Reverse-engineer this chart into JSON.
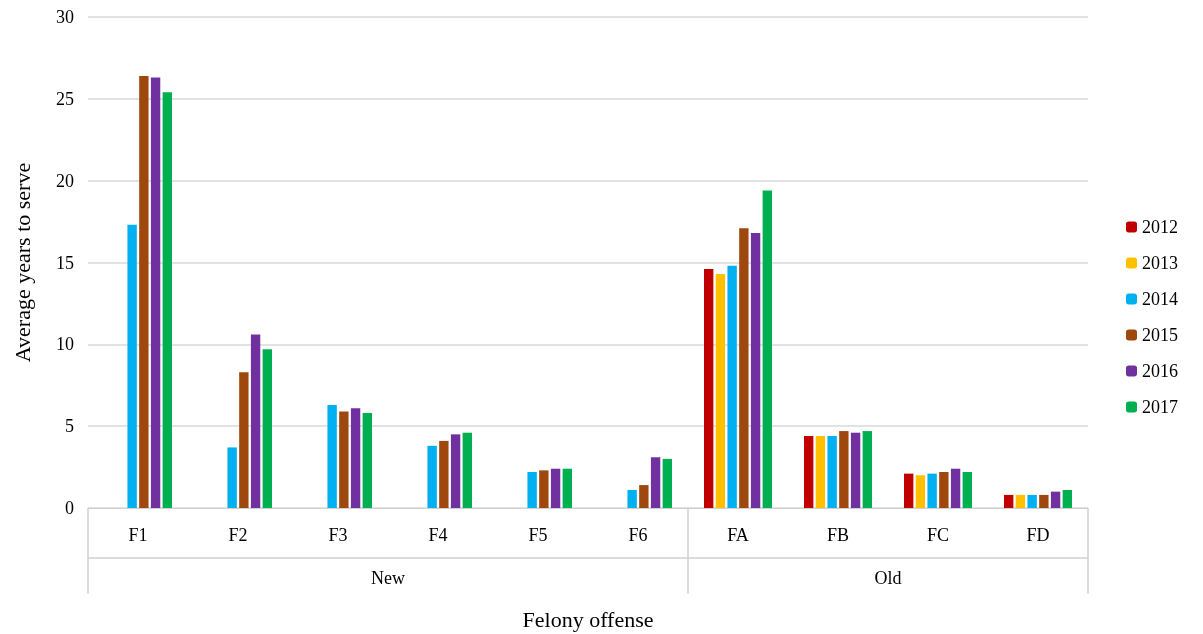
{
  "chart_data": {
    "type": "bar",
    "xlabel": "Felony offense",
    "ylabel": "Average years to serve",
    "categories": [
      "F1",
      "F2",
      "F3",
      "F4",
      "F5",
      "F6",
      "FA",
      "FB",
      "FC",
      "FD"
    ],
    "annotations": [
      "New",
      "Old"
    ],
    "series": [
      {
        "name": "2012",
        "color": "#c00000",
        "values": [
          null,
          null,
          null,
          null,
          null,
          null,
          14.6,
          4.4,
          2.1,
          0.8
        ]
      },
      {
        "name": "2013",
        "color": "#ffc000",
        "values": [
          null,
          null,
          null,
          null,
          null,
          null,
          14.3,
          4.4,
          2.0,
          0.8
        ]
      },
      {
        "name": "2014",
        "color": "#00b0f0",
        "values": [
          17.3,
          3.7,
          6.3,
          3.8,
          2.2,
          1.1,
          14.8,
          4.4,
          2.1,
          0.8
        ]
      },
      {
        "name": "2015",
        "color": "#9e480e",
        "values": [
          26.4,
          8.3,
          5.9,
          4.1,
          2.3,
          1.4,
          17.1,
          4.7,
          2.2,
          0.8
        ]
      },
      {
        "name": "2016",
        "color": "#7030a0",
        "values": [
          26.3,
          10.6,
          6.1,
          4.5,
          2.4,
          3.1,
          16.8,
          4.6,
          2.4,
          1.0
        ]
      },
      {
        "name": "2017",
        "color": "#00b050",
        "values": [
          25.4,
          9.7,
          5.8,
          4.6,
          2.4,
          3.0,
          19.4,
          4.7,
          2.2,
          1.1
        ]
      }
    ],
    "ylim": [
      0,
      30
    ],
    "yticks": [
      0,
      5,
      10,
      15,
      20,
      25,
      30
    ],
    "grid": "y",
    "legend": "right"
  }
}
